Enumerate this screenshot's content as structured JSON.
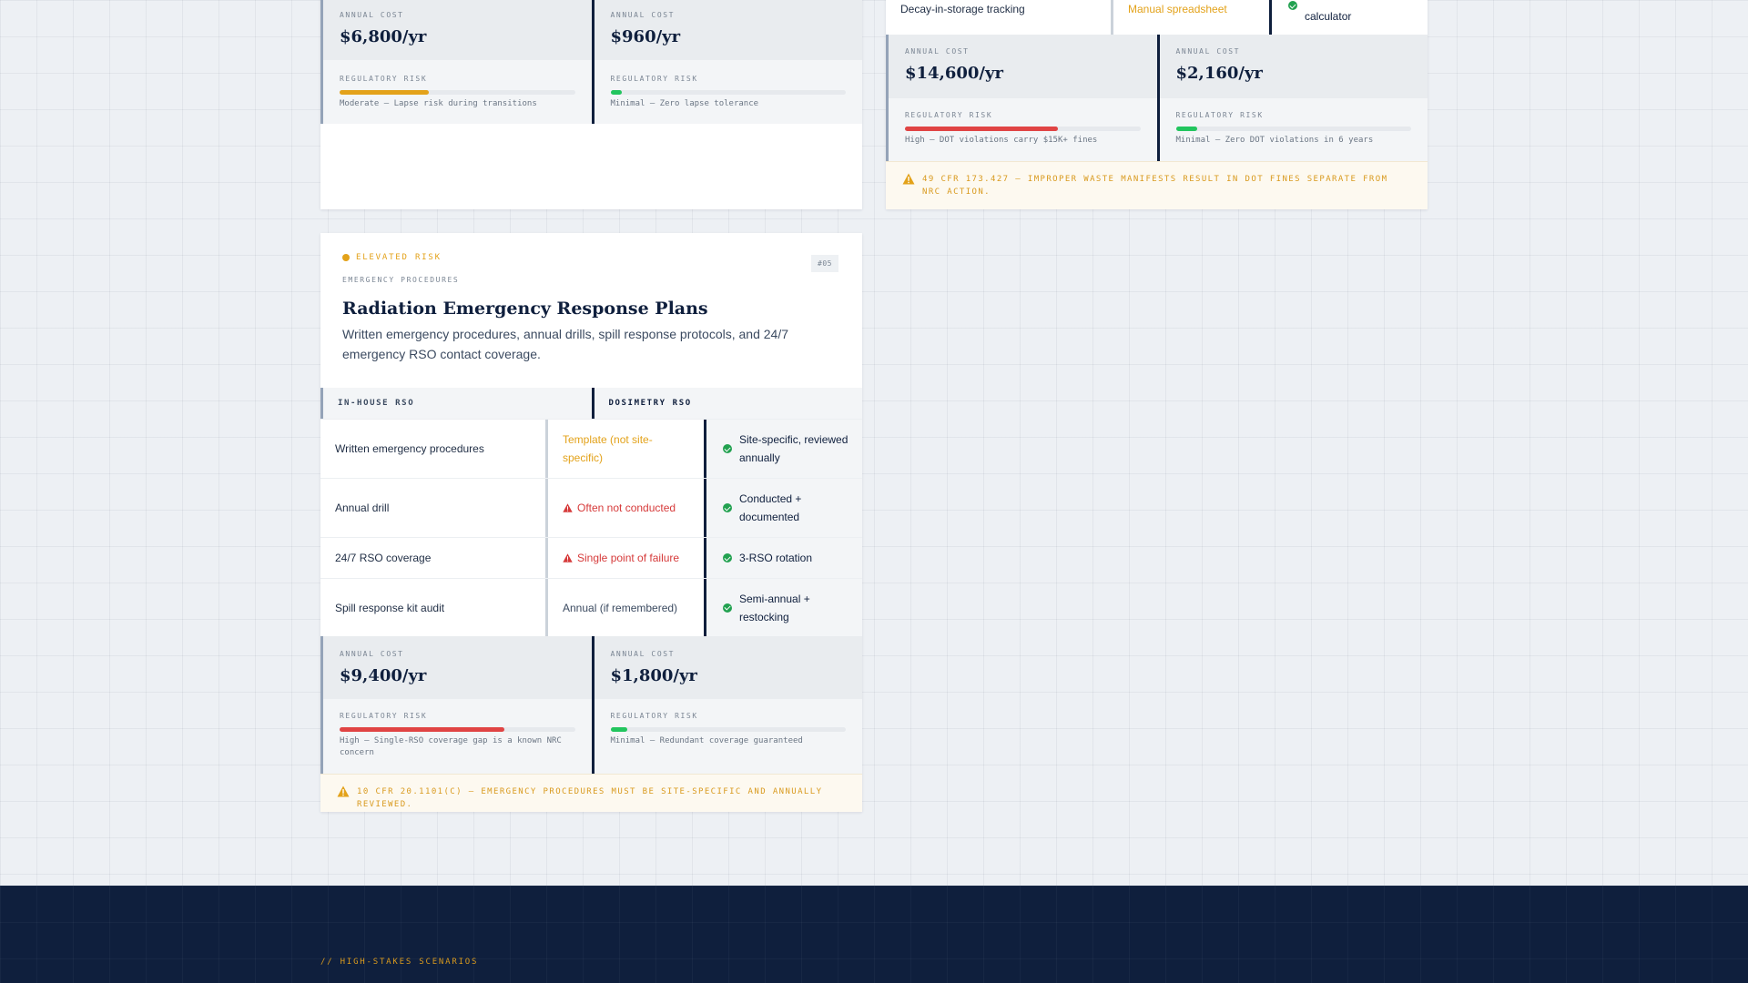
{
  "card_top_left": {
    "inhouse_cost_label": "ANNUAL COST",
    "inhouse_cost": "$6,800/yr",
    "dosimetry_cost_label": "ANNUAL COST",
    "dosimetry_cost": "$960/yr",
    "inhouse_risk_label": "REGULATORY RISK",
    "inhouse_risk_level": 0.38,
    "inhouse_risk_color": "#e3a21a",
    "inhouse_risk_text": "Moderate — Lapse risk during transitions",
    "dosimetry_risk_label": "REGULATORY RISK",
    "dosimetry_risk_level": 0.05,
    "dosimetry_risk_color": "#22c55e",
    "dosimetry_risk_text": "Minimal — Zero lapse tolerance"
  },
  "card_top_right": {
    "row_feature": "Decay-in-storage tracking",
    "row_inhouse": "Manual spreadsheet",
    "row_dosimetry": "calculator",
    "inhouse_cost_label": "ANNUAL COST",
    "inhouse_cost": "$14,600/yr",
    "dosimetry_cost_label": "ANNUAL COST",
    "dosimetry_cost": "$2,160/yr",
    "inhouse_risk_label": "REGULATORY RISK",
    "inhouse_risk_level": 0.65,
    "inhouse_risk_color": "#e04444",
    "inhouse_risk_text": "High — DOT violations carry $15K+ fines",
    "dosimetry_risk_label": "REGULATORY RISK",
    "dosimetry_risk_level": 0.09,
    "dosimetry_risk_color": "#22c55e",
    "dosimetry_risk_text": "Minimal — Zero DOT violations in 6 years",
    "warning": "49 CFR 173.427 — Improper waste manifests result in DOT fines separate from NRC action."
  },
  "card_emergency": {
    "risk_badge": "ELEVATED RISK",
    "risk_badge_color": "#e3a21a",
    "category": "EMERGENCY PROCEDURES",
    "number_tag": "#05",
    "title": "Radiation Emergency Response Plans",
    "description": "Written emergency procedures, annual drills, spill response protocols, and 24/7 emergency RSO contact coverage.",
    "col_inhouse": "IN-HOUSE RSO",
    "col_dosimetry": "DOSIMETRY RSO",
    "rows": [
      {
        "feature": "Written emergency procedures",
        "inhouse": "Template (not site-specific)",
        "inhouse_status": "amber",
        "dosimetry": "Site-specific, reviewed annually"
      },
      {
        "feature": "Annual drill",
        "inhouse": "Often not conducted",
        "inhouse_status": "red",
        "dosimetry": "Conducted + documented"
      },
      {
        "feature": "24/7 RSO coverage",
        "inhouse": "Single point of failure",
        "inhouse_status": "red",
        "dosimetry": "3-RSO rotation"
      },
      {
        "feature": "Spill response kit audit",
        "inhouse": "Annual (if remembered)",
        "inhouse_status": "neutral",
        "dosimetry": "Semi-annual + restocking"
      }
    ],
    "inhouse_cost_label": "ANNUAL COST",
    "inhouse_cost": "$9,400/yr",
    "dosimetry_cost_label": "ANNUAL COST",
    "dosimetry_cost": "$1,800/yr",
    "inhouse_risk_label": "REGULATORY RISK",
    "inhouse_risk_level": 0.7,
    "inhouse_risk_color": "#e04444",
    "inhouse_risk_text": "High — Single-RSO coverage gap is a known NRC concern",
    "dosimetry_risk_label": "REGULATORY RISK",
    "dosimetry_risk_level": 0.07,
    "dosimetry_risk_color": "#22c55e",
    "dosimetry_risk_text": "Minimal — Redundant coverage guaranteed",
    "warning": "10 CFR 20.1101(c) — Emergency procedures must be site-specific and annually reviewed."
  },
  "footer": {
    "section_label": "// HIGH-STAKES SCENARIOS"
  }
}
